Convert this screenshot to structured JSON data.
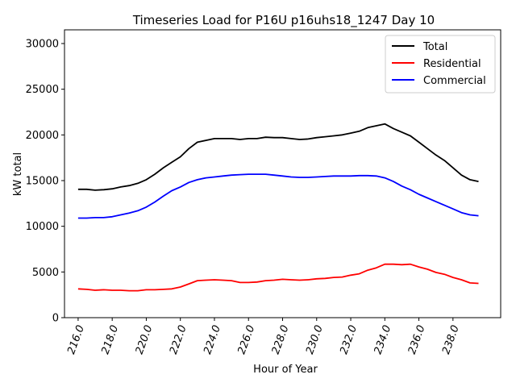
{
  "chart_data": {
    "type": "line",
    "title": "Timeseries Load for P16U p16uhs18_1247  Day 10",
    "xlabel": "Hour of Year",
    "ylabel": "kW total",
    "xlim": [
      215.2,
      240.8
    ],
    "ylim": [
      0,
      31500
    ],
    "xticks": [
      216,
      218,
      220,
      222,
      224,
      226,
      228,
      230,
      232,
      234,
      236,
      238
    ],
    "xtick_labels": [
      "216.0",
      "218.0",
      "220.0",
      "222.0",
      "224.0",
      "226.0",
      "228.0",
      "230.0",
      "232.0",
      "234.0",
      "236.0",
      "238.0"
    ],
    "yticks": [
      0,
      5000,
      10000,
      15000,
      20000,
      25000,
      30000
    ],
    "ytick_labels": [
      "0",
      "5000",
      "10000",
      "15000",
      "20000",
      "25000",
      "30000"
    ],
    "grid": false,
    "legend_position": "top-right",
    "x": [
      216.0,
      216.5,
      217.0,
      217.5,
      218.0,
      218.5,
      219.0,
      219.5,
      220.0,
      220.5,
      221.0,
      221.5,
      222.0,
      222.5,
      223.0,
      223.5,
      224.0,
      224.5,
      225.0,
      225.5,
      226.0,
      226.5,
      227.0,
      227.5,
      228.0,
      228.5,
      229.0,
      229.5,
      230.0,
      230.5,
      231.0,
      231.5,
      232.0,
      232.5,
      233.0,
      233.5,
      234.0,
      234.5,
      235.0,
      235.5,
      236.0,
      236.5,
      237.0,
      237.5,
      238.0,
      238.5,
      239.0,
      239.5
    ],
    "series": [
      {
        "name": "Total",
        "color": "#000000",
        "values": [
          14050,
          14050,
          13950,
          14000,
          14100,
          14300,
          14450,
          14700,
          15100,
          15700,
          16400,
          17000,
          17600,
          18500,
          19200,
          19400,
          19600,
          19600,
          19600,
          19500,
          19600,
          19600,
          19750,
          19700,
          19700,
          19600,
          19500,
          19550,
          19700,
          19800,
          19900,
          20000,
          20200,
          20400,
          20800,
          21000,
          21200,
          20700,
          20300,
          19900,
          19200,
          18500,
          17800,
          17200,
          16400,
          15600,
          15100,
          14900
        ]
      },
      {
        "name": "Residential",
        "color": "#ff0000",
        "values": [
          3150,
          3100,
          3000,
          3050,
          3000,
          3000,
          2950,
          2950,
          3050,
          3050,
          3100,
          3150,
          3350,
          3700,
          4050,
          4100,
          4150,
          4100,
          4050,
          3850,
          3850,
          3900,
          4050,
          4100,
          4200,
          4150,
          4100,
          4150,
          4250,
          4300,
          4400,
          4450,
          4650,
          4800,
          5200,
          5450,
          5850,
          5850,
          5800,
          5850,
          5550,
          5300,
          4950,
          4750,
          4400,
          4150,
          3800,
          3750
        ]
      },
      {
        "name": "Commercial",
        "color": "#0000ff",
        "values": [
          10900,
          10900,
          10950,
          10950,
          11050,
          11250,
          11450,
          11700,
          12100,
          12650,
          13300,
          13900,
          14300,
          14800,
          15100,
          15300,
          15400,
          15500,
          15600,
          15650,
          15700,
          15700,
          15700,
          15600,
          15500,
          15400,
          15350,
          15350,
          15400,
          15450,
          15500,
          15500,
          15500,
          15550,
          15550,
          15500,
          15300,
          14900,
          14400,
          14000,
          13500,
          13100,
          12700,
          12300,
          11900,
          11500,
          11250,
          11150
        ]
      }
    ]
  }
}
